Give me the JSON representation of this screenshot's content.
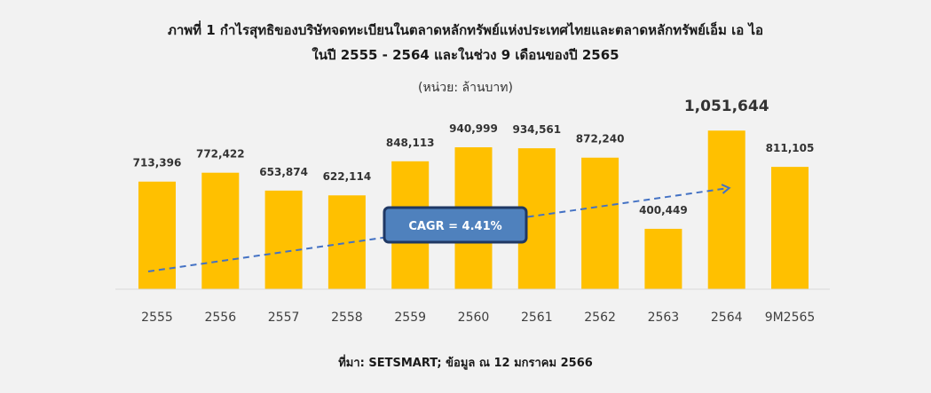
{
  "title_line1": "ภาพที่ 1 กำไรสุทธิของบริษัทจดทะเบียนในตลาดหลักทรัพย์แห่งประเทศไทยและตลาดหลักทรัพย์เอ็ม เอ ไอ",
  "title_line2": "ในปี 2555 - 2564 และในช่วง 9 เดือนของปี 2565",
  "unit_label": "(หน่วย:   ล้านบาท)",
  "source": "ที่มา: SETSMART; ข้อมูล ณ 12 มกราคม 2566",
  "chart_data": {
    "type": "bar",
    "categories": [
      "2555",
      "2556",
      "2557",
      "2558",
      "2559",
      "2560",
      "2561",
      "2562",
      "2563",
      "2564",
      "9M2565"
    ],
    "values": [
      713396,
      772422,
      653874,
      622114,
      848113,
      940999,
      934561,
      872240,
      400449,
      1051644,
      811105
    ],
    "value_labels": [
      "713,396",
      "772,422",
      "653,874",
      "622,114",
      "848,113",
      "940,999",
      "934,561",
      "872,240",
      "400,449",
      "1,051,644",
      "811,105"
    ],
    "highlight_index": 9,
    "annotation": "CAGR = 4.41%",
    "trend_line": "dashed arrow",
    "ylim": [
      400000,
      1100000
    ],
    "grid": false,
    "colors": {
      "bar": "#FFC000",
      "trend": "#4472C4",
      "annotation_fill": "#4F81BD",
      "annotation_border": "#1F3864",
      "axis": "#d9d9d9",
      "text": "#333333"
    }
  }
}
